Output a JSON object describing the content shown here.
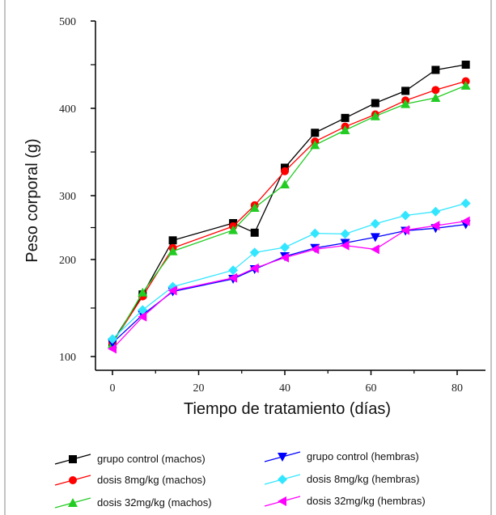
{
  "chart_data": {
    "type": "line",
    "title": "",
    "xlabel": "Tiempo de tratamiento (días)",
    "ylabel": "Peso corporal (g)",
    "xlim": [
      -5,
      85
    ],
    "x_ticks": [
      0,
      20,
      40,
      60,
      80
    ],
    "y_ticks": [
      {
        "label": "100",
        "value": 100
      },
      {
        "label": "200",
        "value": 200
      },
      {
        "label": "300",
        "value": 300
      },
      {
        "label": "400",
        "value": 400
      },
      {
        "label": "500",
        "value": 500
      }
    ],
    "y_minor_ticks": [
      150,
      250,
      350,
      450
    ],
    "ylim": [
      90,
      510
    ],
    "grid": false,
    "legend_position": "bottom",
    "series": [
      {
        "name": "grupo control (machos)",
        "color": "#000000",
        "marker": "square",
        "x": [
          0,
          7,
          14,
          28,
          33,
          40,
          47,
          54,
          61,
          68,
          75,
          82
        ],
        "y": [
          115,
          164,
          230,
          257,
          242,
          332,
          372,
          389,
          406,
          420,
          444,
          450
        ]
      },
      {
        "name": "dosis 8mg/kg (machos)",
        "color": "#ff0000",
        "marker": "circle",
        "x": [
          0,
          7,
          14,
          28,
          33,
          40,
          47,
          54,
          61,
          68,
          75,
          82
        ],
        "y": [
          114,
          162,
          218,
          252,
          285,
          328,
          362,
          379,
          393,
          409,
          421,
          431
        ]
      },
      {
        "name": "dosis 32mg/kg (machos)",
        "color": "#22cc22",
        "marker": "triangle-up",
        "x": [
          0,
          7,
          14,
          28,
          33,
          40,
          47,
          54,
          61,
          68,
          75,
          82
        ],
        "y": [
          113,
          166,
          213,
          246,
          281,
          313,
          358,
          375,
          391,
          405,
          412,
          426
        ]
      },
      {
        "name": "grupo control (hembras)",
        "color": "#0000ff",
        "marker": "triangle-down",
        "x": [
          0,
          7,
          14,
          28,
          33,
          40,
          47,
          54,
          61,
          68,
          75,
          82
        ],
        "y": [
          114,
          143,
          167,
          180,
          190,
          205,
          218,
          226,
          235,
          245,
          249,
          255
        ]
      },
      {
        "name": "dosis 8mg/kg (hembras)",
        "color": "#33e6ff",
        "marker": "diamond",
        "x": [
          0,
          7,
          14,
          28,
          33,
          40,
          47,
          54,
          61,
          68,
          75,
          82
        ],
        "y": [
          118,
          148,
          172,
          189,
          211,
          219,
          241,
          240,
          256,
          269,
          275,
          288
        ]
      },
      {
        "name": "dosis 32mg/kg (hembras)",
        "color": "#ff00ff",
        "marker": "triangle-left",
        "x": [
          0,
          7,
          14,
          28,
          33,
          40,
          47,
          54,
          61,
          68,
          75,
          82
        ],
        "y": [
          108,
          141,
          168,
          181,
          191,
          203,
          216,
          222,
          216,
          246,
          253,
          260
        ]
      }
    ]
  }
}
